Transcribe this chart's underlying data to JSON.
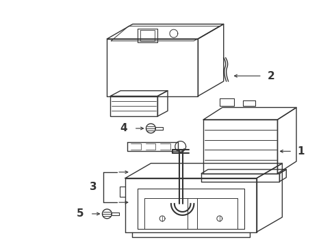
{
  "background_color": "#ffffff",
  "line_color": "#333333",
  "lw": 1.0,
  "fig_w": 4.89,
  "fig_h": 3.6,
  "dpi": 100
}
